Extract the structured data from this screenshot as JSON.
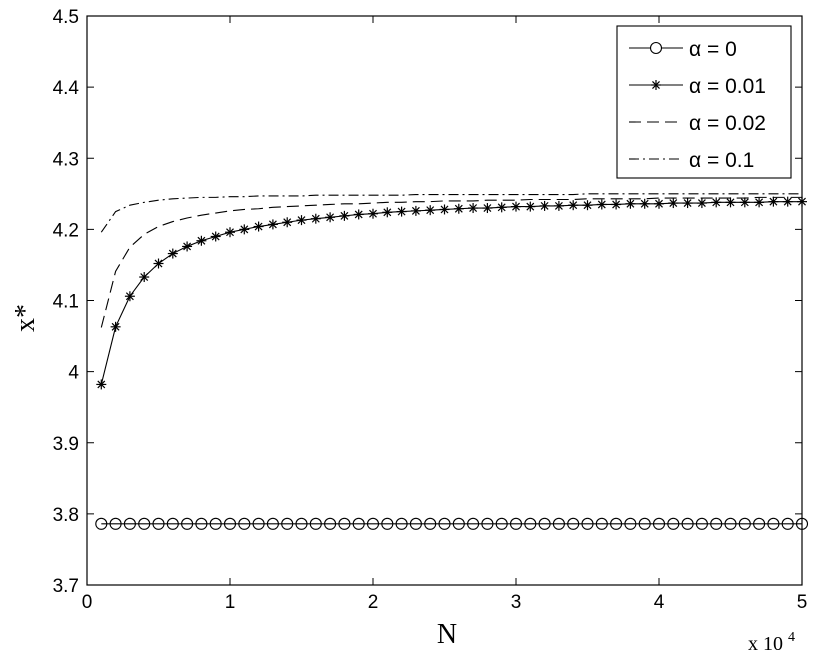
{
  "chart_data": {
    "type": "line",
    "xlabel": "N",
    "ylabel": "x*",
    "x_multiplier": "x 10",
    "x_multiplier_exp": "4",
    "xlim": [
      0,
      5
    ],
    "ylim": [
      3.7,
      4.5
    ],
    "xticks": [
      "0",
      "1",
      "2",
      "3",
      "4",
      "5"
    ],
    "yticks": [
      "3.7",
      "3.8",
      "3.9",
      "4",
      "4.1",
      "4.2",
      "4.3",
      "4.4",
      "4.5"
    ],
    "grid": false,
    "legend_position": "top-right",
    "x": [
      0.1,
      0.2,
      0.3,
      0.4,
      0.5,
      0.6,
      0.7,
      0.8,
      0.9,
      1.0,
      1.1,
      1.2,
      1.3,
      1.4,
      1.5,
      1.6,
      1.7,
      1.8,
      1.9,
      2.0,
      2.1,
      2.2,
      2.3,
      2.4,
      2.5,
      2.6,
      2.7,
      2.8,
      2.9,
      3.0,
      3.1,
      3.2,
      3.3,
      3.4,
      3.5,
      3.6,
      3.7,
      3.8,
      3.9,
      4.0,
      4.1,
      4.2,
      4.3,
      4.4,
      4.5,
      4.6,
      4.7,
      4.8,
      4.9,
      5.0
    ],
    "series": [
      {
        "name": "α = 0",
        "style": "marker-circle",
        "values": [
          3.786,
          3.786,
          3.786,
          3.786,
          3.786,
          3.786,
          3.786,
          3.786,
          3.786,
          3.786,
          3.786,
          3.786,
          3.786,
          3.786,
          3.786,
          3.786,
          3.786,
          3.786,
          3.786,
          3.786,
          3.786,
          3.786,
          3.786,
          3.786,
          3.786,
          3.786,
          3.786,
          3.786,
          3.786,
          3.786,
          3.786,
          3.786,
          3.786,
          3.786,
          3.786,
          3.786,
          3.786,
          3.786,
          3.786,
          3.786,
          3.786,
          3.786,
          3.786,
          3.786,
          3.786,
          3.786,
          3.786,
          3.786,
          3.786,
          3.786
        ]
      },
      {
        "name": "α = 0.01",
        "style": "marker-star",
        "values": [
          3.982,
          4.063,
          4.106,
          4.133,
          4.152,
          4.166,
          4.176,
          4.184,
          4.19,
          4.196,
          4.2,
          4.204,
          4.207,
          4.21,
          4.213,
          4.215,
          4.217,
          4.219,
          4.221,
          4.222,
          4.224,
          4.225,
          4.226,
          4.227,
          4.228,
          4.229,
          4.23,
          4.23,
          4.231,
          4.232,
          4.232,
          4.233,
          4.233,
          4.234,
          4.234,
          4.235,
          4.235,
          4.236,
          4.236,
          4.236,
          4.237,
          4.237,
          4.237,
          4.238,
          4.238,
          4.238,
          4.238,
          4.239,
          4.239,
          4.239
        ]
      },
      {
        "name": "α = 0.02",
        "style": "dashed",
        "values": [
          4.062,
          4.141,
          4.175,
          4.193,
          4.204,
          4.211,
          4.216,
          4.22,
          4.223,
          4.226,
          4.228,
          4.229,
          4.231,
          4.232,
          4.233,
          4.234,
          4.235,
          4.236,
          4.236,
          4.237,
          4.238,
          4.238,
          4.239,
          4.239,
          4.24,
          4.24,
          4.24,
          4.241,
          4.241,
          4.241,
          4.242,
          4.242,
          4.242,
          4.242,
          4.243,
          4.243,
          4.243,
          4.243,
          4.243,
          4.244,
          4.244,
          4.244,
          4.244,
          4.244,
          4.244,
          4.244,
          4.245,
          4.245,
          4.245,
          4.245
        ]
      },
      {
        "name": "α = 0.1",
        "style": "dashdot",
        "values": [
          4.196,
          4.225,
          4.234,
          4.238,
          4.241,
          4.243,
          4.244,
          4.245,
          4.245,
          4.246,
          4.246,
          4.247,
          4.247,
          4.247,
          4.247,
          4.248,
          4.248,
          4.248,
          4.248,
          4.248,
          4.248,
          4.248,
          4.249,
          4.249,
          4.249,
          4.249,
          4.249,
          4.249,
          4.249,
          4.249,
          4.249,
          4.249,
          4.249,
          4.249,
          4.25,
          4.25,
          4.25,
          4.25,
          4.25,
          4.25,
          4.25,
          4.25,
          4.25,
          4.25,
          4.25,
          4.25,
          4.25,
          4.25,
          4.25,
          4.25
        ]
      }
    ]
  }
}
